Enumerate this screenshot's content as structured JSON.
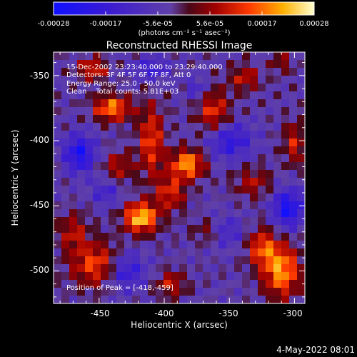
{
  "chart_data": {
    "type": "heatmap",
    "title": "Reconstructed RHESSI Image",
    "xlabel": "Heliocentric X (arcsec)",
    "ylabel": "Heliocentric Y (arcsec)",
    "xlim": [
      -485,
      -292
    ],
    "ylim": [
      -525,
      -332
    ],
    "x_ticks": [
      -450,
      -400,
      -350,
      -300
    ],
    "y_ticks": [
      -500,
      -450,
      -400,
      -350
    ],
    "colorbar": {
      "range": [
        -0.00028,
        0.00028
      ],
      "tick_labels": [
        "-0.00028",
        "-0.00017",
        "-5.6e-05",
        "5.6e-05",
        "0.00017",
        "0.00028"
      ],
      "unit_label": "(photons cm⁻² s⁻¹ asec⁻²)"
    },
    "annotations": {
      "time": "15-Dec-2002 23:23:40.000 to 23:29:40.000",
      "detectors": "Detectors: 3F 4F 5F 6F 7F 8F, Att 0",
      "energy": "Energy Range: 25.0 - 50.0 keV",
      "method": "Clean    Total counts: 5.81E+03",
      "peak": "Position of Peak = [-418,-459]"
    },
    "peak_position": [
      -418,
      -459
    ],
    "sources": [
      {
        "x": -418,
        "y": -459,
        "amp": 0.00028,
        "sx": 9,
        "sy": 8
      },
      {
        "x": -382,
        "y": -418,
        "amp": 0.00024,
        "sx": 9,
        "sy": 8
      },
      {
        "x": -440,
        "y": -375,
        "amp": 0.00022,
        "sx": 10,
        "sy": 7
      },
      {
        "x": -455,
        "y": -345,
        "amp": 0.00016,
        "sx": 8,
        "sy": 6
      },
      {
        "x": -410,
        "y": -400,
        "amp": 0.00017,
        "sx": 7,
        "sy": 20
      },
      {
        "x": -395,
        "y": -440,
        "amp": 0.00015,
        "sx": 8,
        "sy": 10
      },
      {
        "x": -452,
        "y": -495,
        "amp": 0.00018,
        "sx": 14,
        "sy": 12
      },
      {
        "x": -470,
        "y": -470,
        "amp": 0.00012,
        "sx": 8,
        "sy": 10
      },
      {
        "x": -362,
        "y": -378,
        "amp": 0.00016,
        "sx": 9,
        "sy": 12
      },
      {
        "x": -338,
        "y": -352,
        "amp": 0.00013,
        "sx": 8,
        "sy": 7
      },
      {
        "x": -310,
        "y": -500,
        "amp": 0.00024,
        "sx": 10,
        "sy": 14
      },
      {
        "x": -325,
        "y": -482,
        "amp": 0.00017,
        "sx": 8,
        "sy": 10
      },
      {
        "x": -332,
        "y": -432,
        "amp": 0.00011,
        "sx": 10,
        "sy": 8
      },
      {
        "x": -365,
        "y": -470,
        "amp": 0.00012,
        "sx": 8,
        "sy": 7
      },
      {
        "x": -300,
        "y": -402,
        "amp": 0.00013,
        "sx": 6,
        "sy": 12
      },
      {
        "x": -395,
        "y": -510,
        "amp": 0.00013,
        "sx": 8,
        "sy": 7
      },
      {
        "x": -435,
        "y": -420,
        "amp": 0.00012,
        "sx": 8,
        "sy": 8
      },
      {
        "x": -310,
        "y": -340,
        "amp": 9e-05,
        "sx": 6,
        "sy": 6
      },
      {
        "x": -465,
        "y": -410,
        "amp": -0.0002,
        "sx": 8,
        "sy": 10
      },
      {
        "x": -430,
        "y": -500,
        "amp": -0.00016,
        "sx": 10,
        "sy": 10
      },
      {
        "x": -350,
        "y": -400,
        "amp": -0.00015,
        "sx": 12,
        "sy": 10
      },
      {
        "x": -305,
        "y": -452,
        "amp": -0.00021,
        "sx": 8,
        "sy": 10
      },
      {
        "x": -355,
        "y": -470,
        "amp": -0.00012,
        "sx": 10,
        "sy": 8
      },
      {
        "x": -410,
        "y": -345,
        "amp": -0.00012,
        "sx": 10,
        "sy": 6
      },
      {
        "x": -445,
        "y": -440,
        "amp": -0.0001,
        "sx": 7,
        "sy": 7
      },
      {
        "x": -375,
        "y": -360,
        "amp": -9e-05,
        "sx": 6,
        "sy": 6
      }
    ]
  },
  "footer": {
    "date": "4-May-2022 08:01"
  }
}
